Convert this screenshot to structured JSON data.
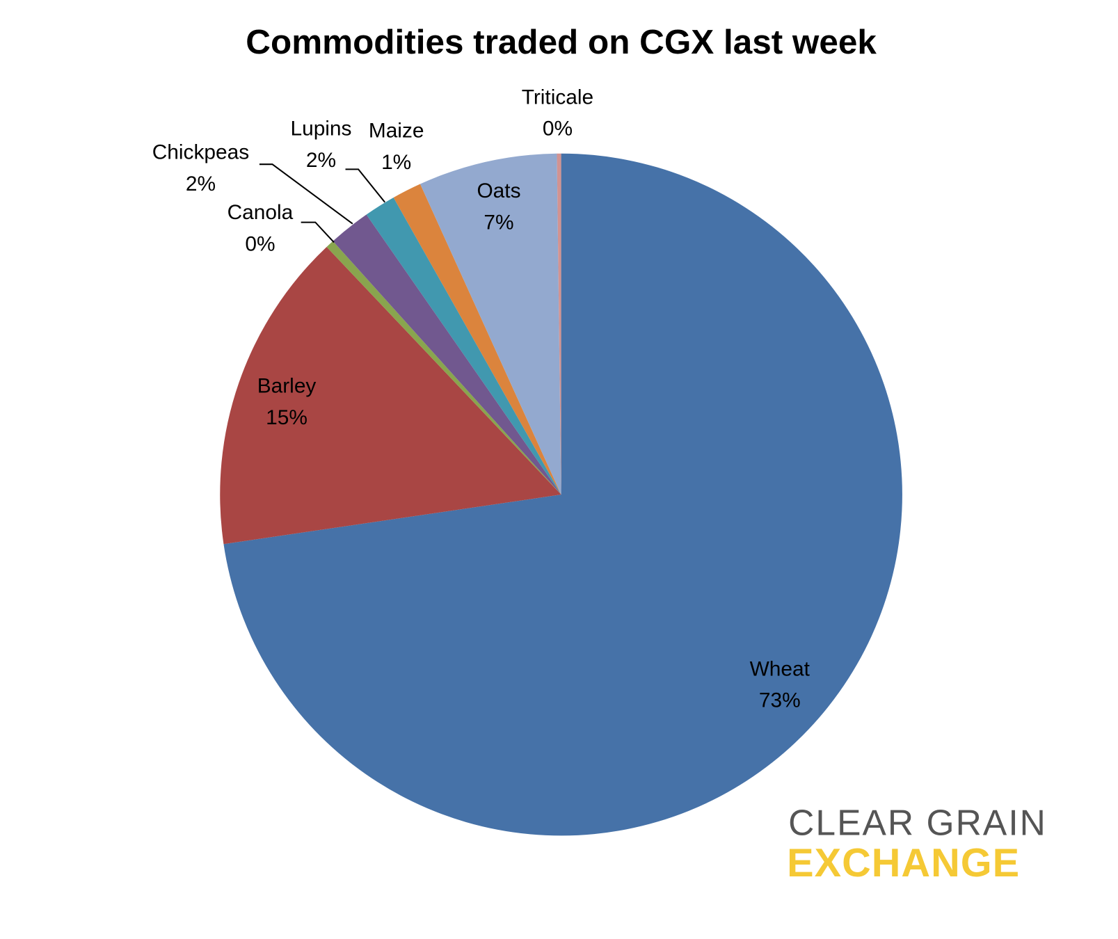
{
  "chart_data": {
    "type": "pie",
    "title": "Commodities traded on CGX last week",
    "categories": [
      "Wheat",
      "Barley",
      "Canola",
      "Chickpeas",
      "Lupins",
      "Maize",
      "Oats",
      "Triticale"
    ],
    "values": [
      72.9,
      15.3,
      0.4,
      2.0,
      1.5,
      1.4,
      6.6,
      0.2
    ],
    "value_labels": [
      "73%",
      "15%",
      "0%",
      "2%",
      "2%",
      "1%",
      "7%",
      "0%"
    ],
    "colors": [
      "#4672a8",
      "#a94644",
      "#89a54e",
      "#71588f",
      "#4198af",
      "#db843d",
      "#93a9cf",
      "#d19392"
    ]
  },
  "logo": {
    "line1": "CLEAR GRAIN",
    "line2": "EXCHANGE"
  }
}
